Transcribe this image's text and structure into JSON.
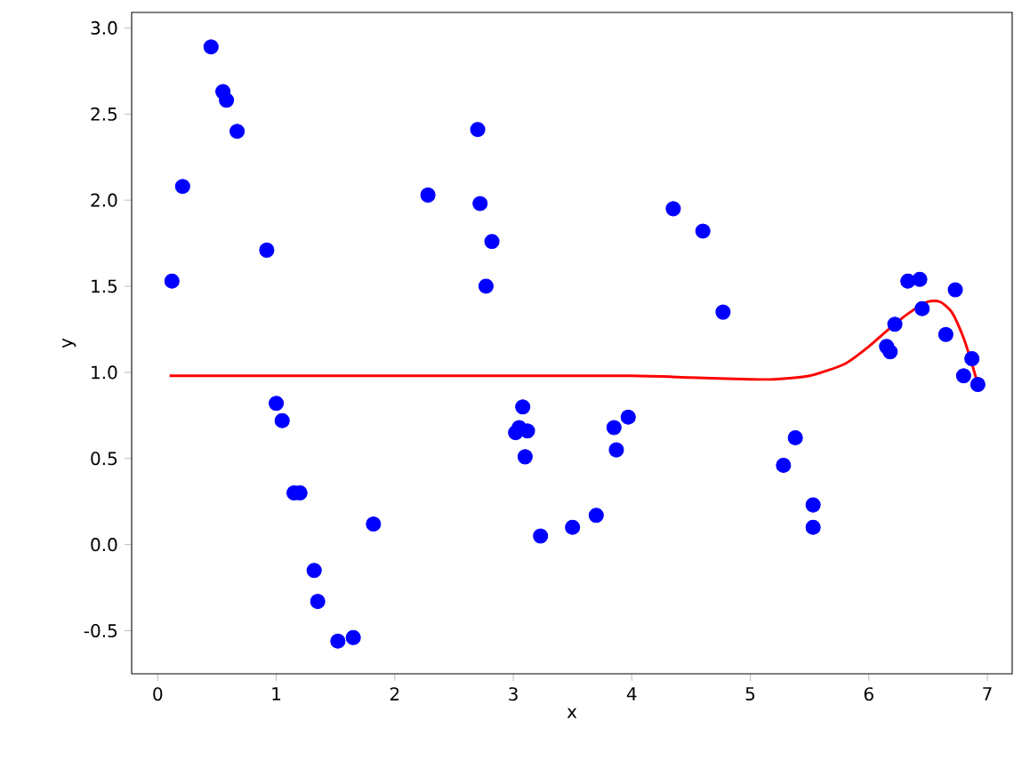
{
  "chart_data": {
    "type": "scatter",
    "xlabel": "x",
    "ylabel": "y",
    "xlim": [
      -0.22,
      7.21
    ],
    "ylim": [
      -0.75,
      3.09
    ],
    "xticks": [
      0,
      1,
      2,
      3,
      4,
      5,
      6,
      7
    ],
    "yticks": [
      -0.5,
      {
        "value": 0,
        "label": "0.0"
      },
      0.5,
      {
        "value": 1,
        "label": "1.0"
      },
      1.5,
      {
        "value": 2,
        "label": "2.0"
      },
      2.5,
      {
        "value": 3,
        "label": "3.0"
      }
    ],
    "series": [
      {
        "color": "#0000ff",
        "marker": "circle",
        "x": [
          0.12,
          0.21,
          0.45,
          0.55,
          0.58,
          0.67,
          0.92,
          1.0,
          1.05,
          1.15,
          1.2,
          1.32,
          1.35,
          1.52,
          1.65,
          1.82,
          2.28,
          2.7,
          2.72,
          2.77,
          2.82,
          3.02,
          3.05,
          3.08,
          3.1,
          3.12,
          3.23,
          3.5,
          3.7,
          3.85,
          3.87,
          3.97,
          4.35,
          4.6,
          4.77,
          5.28,
          5.38,
          5.53,
          5.53,
          6.15,
          6.18,
          6.22,
          6.33,
          6.43,
          6.45,
          6.65,
          6.73,
          6.8,
          6.87,
          6.92
        ],
        "values": [
          1.53,
          2.08,
          2.89,
          2.63,
          2.58,
          2.4,
          1.71,
          0.82,
          0.72,
          0.3,
          0.3,
          -0.15,
          -0.33,
          -0.56,
          -0.54,
          0.12,
          2.03,
          2.41,
          1.98,
          1.5,
          1.76,
          0.65,
          0.68,
          0.8,
          0.51,
          0.66,
          0.05,
          0.1,
          0.17,
          0.68,
          0.55,
          0.74,
          1.95,
          1.82,
          1.35,
          0.46,
          0.62,
          0.23,
          0.1,
          1.15,
          1.12,
          1.28,
          1.53,
          1.54,
          1.37,
          1.22,
          1.48,
          0.98,
          1.08,
          0.93
        ]
      },
      {
        "type": "line",
        "color": "#ff0000",
        "marker": "none",
        "line_style": "solid",
        "x": [
          0.1,
          1,
          2,
          3,
          4,
          4.5,
          5,
          5.2,
          5.5,
          5.8,
          6.0,
          6.2,
          6.35,
          6.5,
          6.6,
          6.7,
          6.8,
          6.87,
          6.92
        ],
        "values": [
          0.98,
          0.98,
          0.98,
          0.98,
          0.98,
          0.97,
          0.96,
          0.96,
          0.98,
          1.05,
          1.15,
          1.27,
          1.35,
          1.41,
          1.41,
          1.35,
          1.2,
          1.05,
          0.93
        ]
      }
    ]
  }
}
